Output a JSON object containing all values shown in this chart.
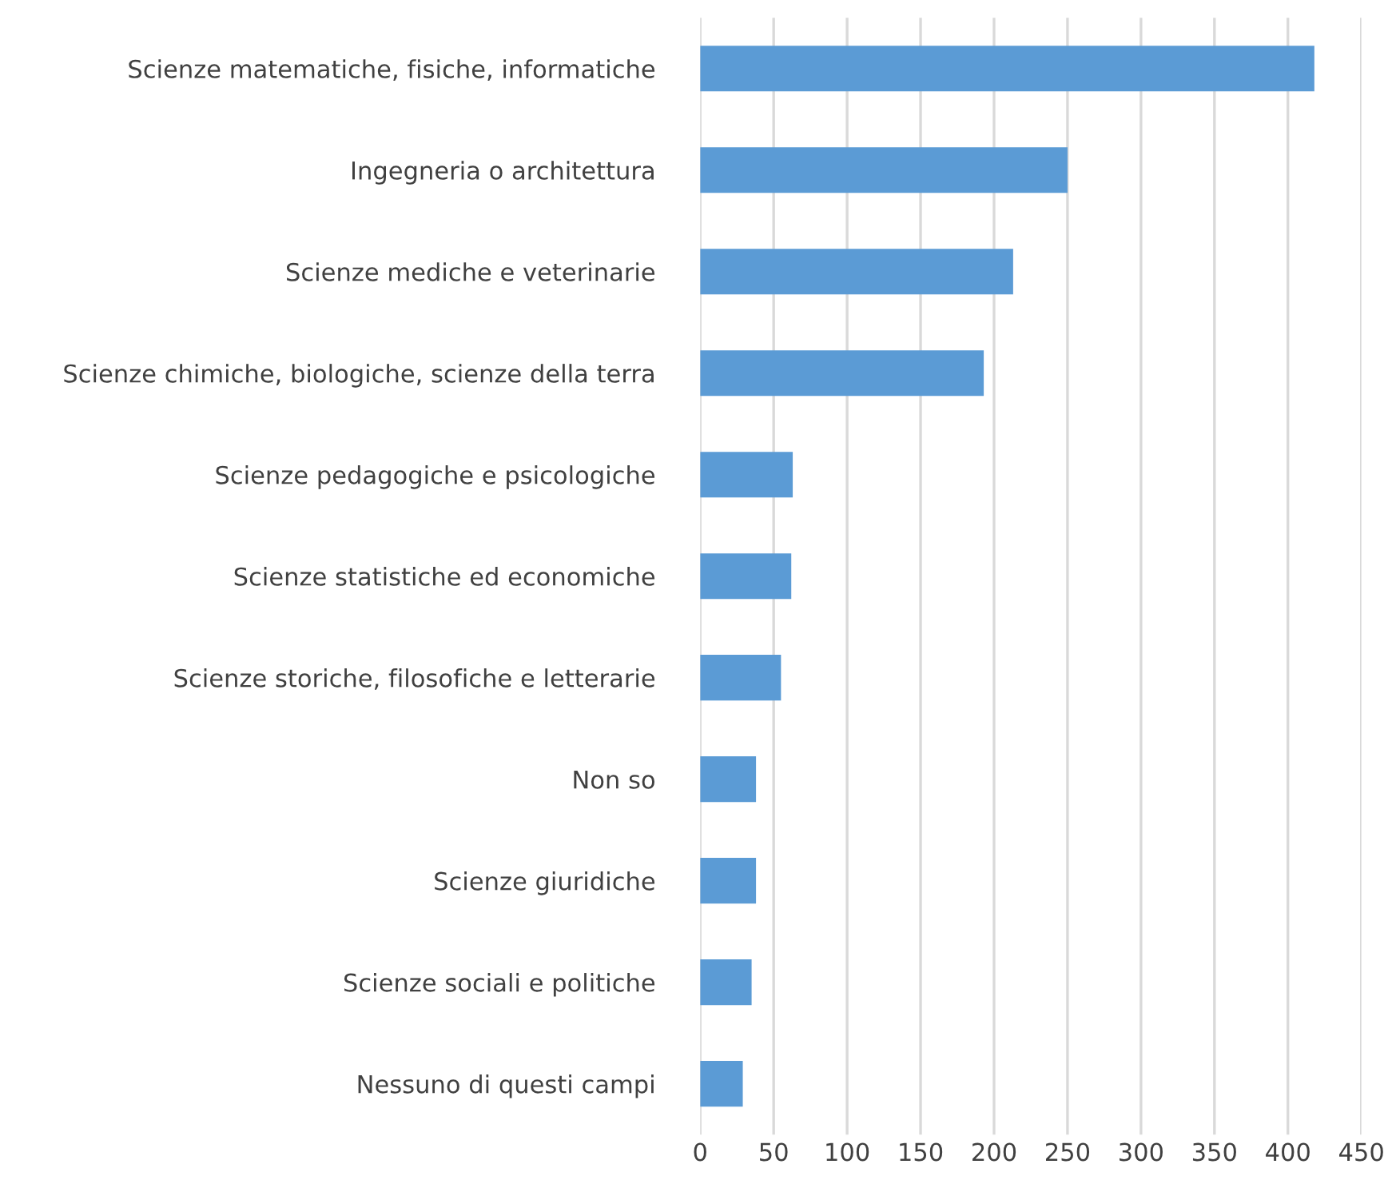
{
  "chart_data": {
    "type": "bar",
    "orientation": "horizontal",
    "categories": [
      "Scienze matematiche, fisiche, informatiche",
      "Ingegneria o architettura",
      "Scienze mediche e veterinarie",
      "Scienze chimiche, biologiche, scienze della terra",
      "Scienze pedagogiche e psicologiche",
      "Scienze statistiche ed economiche",
      "Scienze storiche, filosofiche e letterarie",
      "Non so",
      "Scienze giuridiche",
      "Scienze sociali e politiche",
      "Nessuno di questi campi"
    ],
    "values": [
      418,
      250,
      213,
      193,
      63,
      62,
      55,
      38,
      38,
      35,
      29
    ],
    "color": "#5b9bd5",
    "xlim": [
      0,
      450
    ],
    "xticks": [
      0,
      50,
      100,
      150,
      200,
      250,
      300,
      350,
      400,
      450
    ],
    "grid": "x"
  }
}
